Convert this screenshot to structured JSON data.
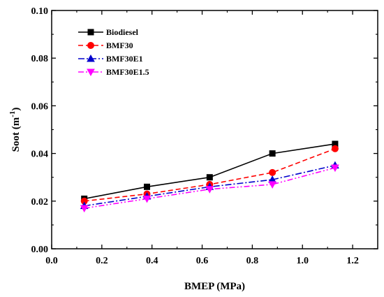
{
  "chart_data": {
    "type": "line",
    "xlabel": "BMEP (MPa)",
    "ylabel_main": "Soot (m",
    "ylabel_sup": "-1",
    "ylabel_tail": ")",
    "xlim": [
      0.0,
      1.3
    ],
    "ylim": [
      0.0,
      0.1
    ],
    "xticks": [
      0.0,
      0.2,
      0.4,
      0.6,
      0.8,
      1.0,
      1.2
    ],
    "xtick_labels": [
      "0.0",
      "0.2",
      "0.4",
      "0.6",
      "0.8",
      "1.0",
      "1.2"
    ],
    "yticks": [
      0.0,
      0.02,
      0.04,
      0.06,
      0.08,
      0.1
    ],
    "ytick_labels": [
      "0.00",
      "0.02",
      "0.04",
      "0.06",
      "0.08",
      "0.10"
    ],
    "grid": false,
    "legend_position": "top-left",
    "x": [
      0.13,
      0.38,
      0.63,
      0.88,
      1.13
    ],
    "series": [
      {
        "name": "Biodiesel",
        "values": [
          0.021,
          0.026,
          0.03,
          0.04,
          0.044
        ],
        "color": "#000000",
        "marker": "square",
        "dash": "solid"
      },
      {
        "name": "BMF30",
        "values": [
          0.02,
          0.023,
          0.027,
          0.032,
          0.042
        ],
        "color": "#ff0000",
        "marker": "circle",
        "dash": "dash"
      },
      {
        "name": "BMF30E1",
        "values": [
          0.018,
          0.022,
          0.026,
          0.029,
          0.035
        ],
        "color": "#0000cc",
        "marker": "triangle-up",
        "dash": "dashdot"
      },
      {
        "name": "BMF30E1.5",
        "values": [
          0.017,
          0.021,
          0.025,
          0.027,
          0.034
        ],
        "color": "#ff00ff",
        "marker": "triangle-down",
        "dash": "dashdotdot"
      }
    ]
  }
}
